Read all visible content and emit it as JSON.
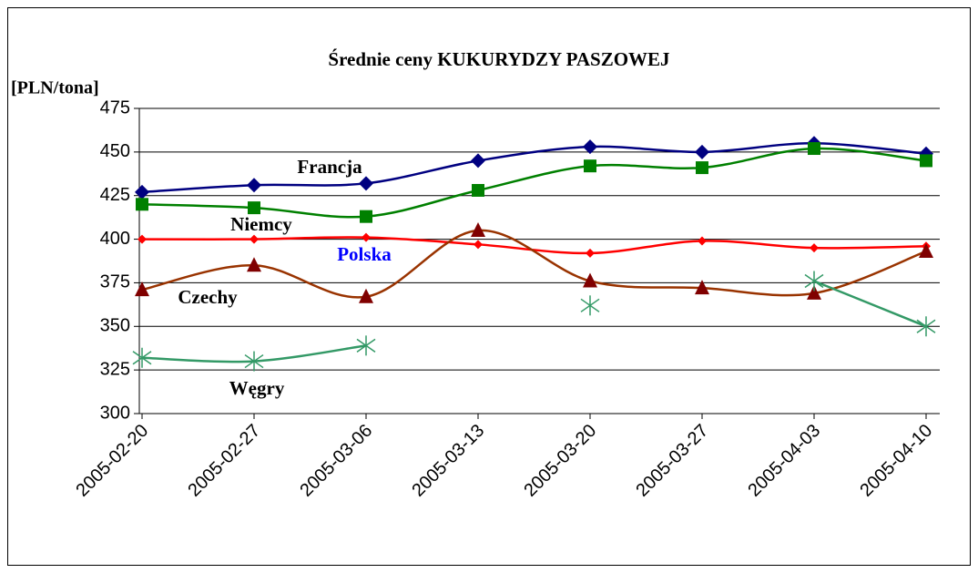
{
  "chart_data": {
    "type": "line",
    "title": "Średnie ceny KUKURYDZY PASZOWEJ",
    "y_label": "[PLN/tona]",
    "categories": [
      "2005-02-20",
      "2005-02-27",
      "2005-03-06",
      "2005-03-13",
      "2005-03-20",
      "2005-03-27",
      "2005-04-03",
      "2005-04-10"
    ],
    "series": [
      {
        "name": "Francja",
        "color": "#000080",
        "marker": "diamond",
        "marker_color": "#000080",
        "label_color": "#000000",
        "values": [
          427,
          431,
          432,
          445,
          453,
          450,
          455,
          449
        ]
      },
      {
        "name": "Niemcy",
        "color": "#008000",
        "marker": "square",
        "marker_color": "#008000",
        "label_color": "#000000",
        "values": [
          420,
          418,
          413,
          428,
          442,
          441,
          452,
          445
        ]
      },
      {
        "name": "Polska",
        "color": "#ff0000",
        "marker": "small-diamond",
        "marker_color": "#ff0000",
        "label_color": "#0000ff",
        "values": [
          400,
          400,
          401,
          397,
          392,
          399,
          395,
          396
        ]
      },
      {
        "name": "Czechy",
        "color": "#993300",
        "marker": "triangle",
        "marker_color": "#800000",
        "label_color": "#000000",
        "values": [
          371,
          385,
          367,
          405,
          376,
          372,
          369,
          393
        ]
      },
      {
        "name": "Węgry",
        "color": "#339966",
        "marker": "asterisk",
        "marker_color": "#339966",
        "label_color": "#000000",
        "values": [
          332,
          330,
          339,
          null,
          362,
          null,
          376,
          350
        ]
      }
    ],
    "ylim": [
      300,
      475
    ],
    "yticks": [
      300,
      325,
      350,
      375,
      400,
      425,
      450,
      475
    ],
    "grid": true
  }
}
